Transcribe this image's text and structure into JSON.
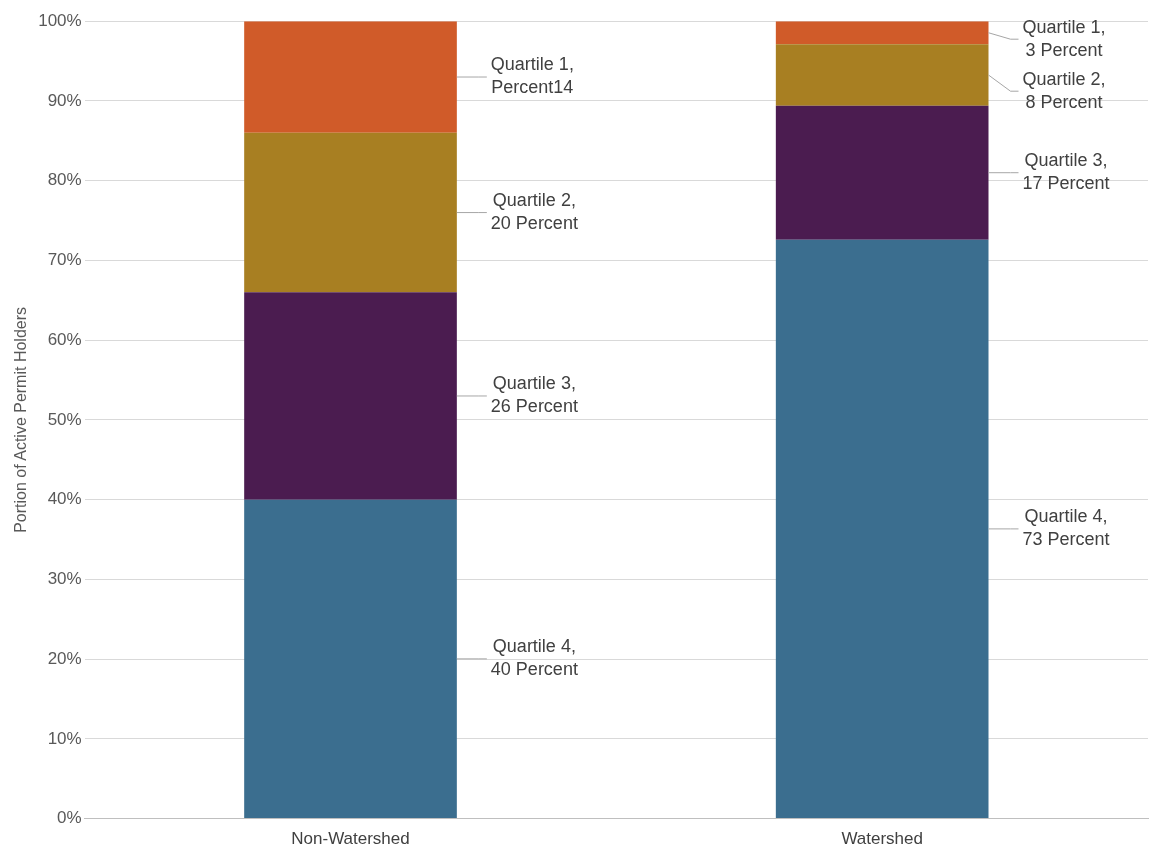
{
  "chart_data": {
    "type": "bar",
    "stacked": true,
    "ylabel": "Portion of Active Permit Holders",
    "categories": [
      "Non-Watershed",
      "Watershed"
    ],
    "series": [
      {
        "color": "#3b6e8f",
        "values": [
          40,
          72.6
        ],
        "value_labels": [
          "Quartile 4, 40 Percent",
          "Quartile 4, 73 Percent"
        ]
      },
      {
        "color": "#4b1c50",
        "values": [
          26,
          16.8
        ],
        "value_labels": [
          "Quartile 3, 26 Percent",
          "Quartile 3, 17 Percent"
        ]
      },
      {
        "color": "#a87f22",
        "values": [
          20,
          7.7
        ],
        "value_labels": [
          "Quartile 2, 20 Percent",
          "Quartile 2, 8 Percent"
        ]
      },
      {
        "color": "#d05b29",
        "values": [
          14,
          2.9
        ],
        "value_labels": [
          "Quartile 1, Percent14",
          "Quartile 1, 3 Percent"
        ]
      }
    ],
    "ylim": [
      0,
      100
    ],
    "yticks": [
      {
        "value": 0,
        "label": "0%"
      },
      {
        "value": 10,
        "label": "10%"
      },
      {
        "value": 20,
        "label": "20%"
      },
      {
        "value": 30,
        "label": "30%"
      },
      {
        "value": 40,
        "label": "40%"
      },
      {
        "value": 50,
        "label": "50%"
      },
      {
        "value": 60,
        "label": "60%"
      },
      {
        "value": 70,
        "label": "70%"
      },
      {
        "value": 80,
        "label": "80%"
      },
      {
        "value": 90,
        "label": "90%"
      },
      {
        "value": 100,
        "label": "100%"
      }
    ],
    "grid": "y",
    "legend": false
  }
}
